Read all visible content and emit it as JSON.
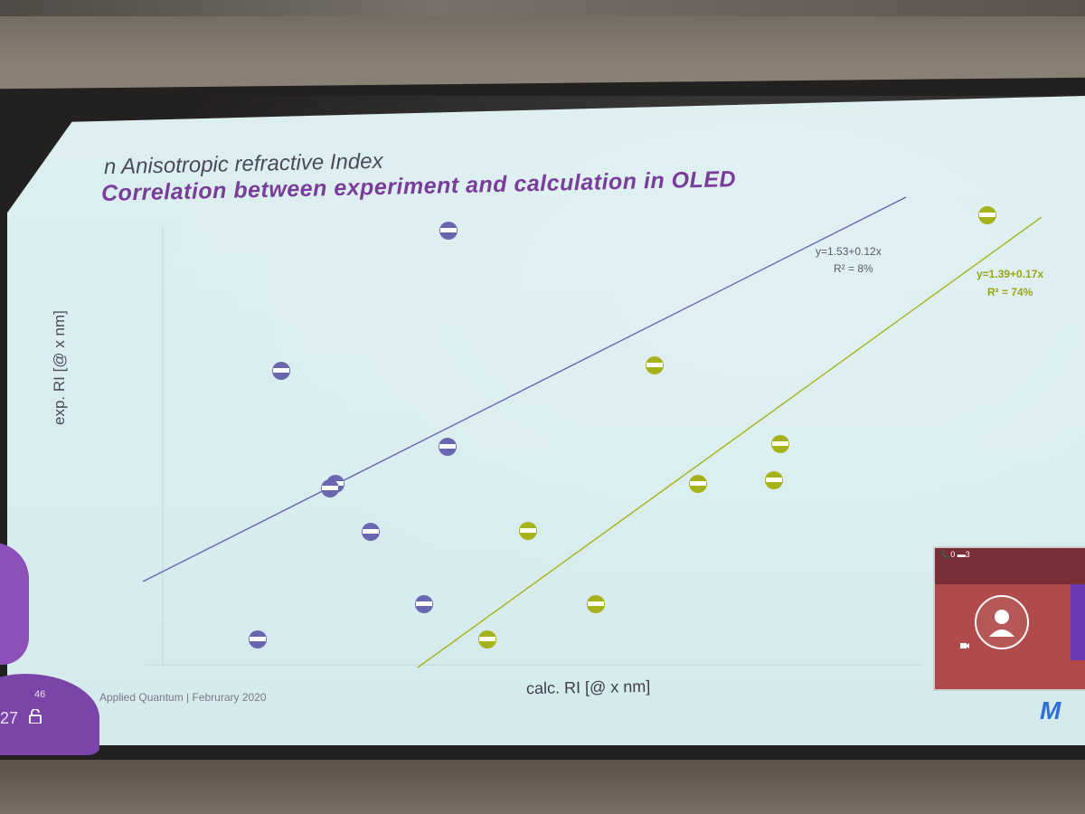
{
  "slide": {
    "subtitle": "n Anisotropic refractive Index",
    "title": "Correlation between experiment and calculation in OLED",
    "footer": "Applied Quantum | Februrary 2020",
    "page_small": "46",
    "page_big": "27",
    "logo": "M"
  },
  "chart": {
    "ylabel": "exp. RI [@ x nm]",
    "xlabel": "calc. RI [@ x nm]",
    "eq_blue": "y=1.53+0.12x",
    "r2_blue": "R² = 8%",
    "eq_green": "y=1.39+0.17x",
    "r2_green": "R² = 74%"
  },
  "pip": {
    "status": "📞0 ▬3"
  },
  "colors": {
    "blue_series": "#6a66b0",
    "green_series": "#a6b21a",
    "title": "#7a3c9a"
  }
}
